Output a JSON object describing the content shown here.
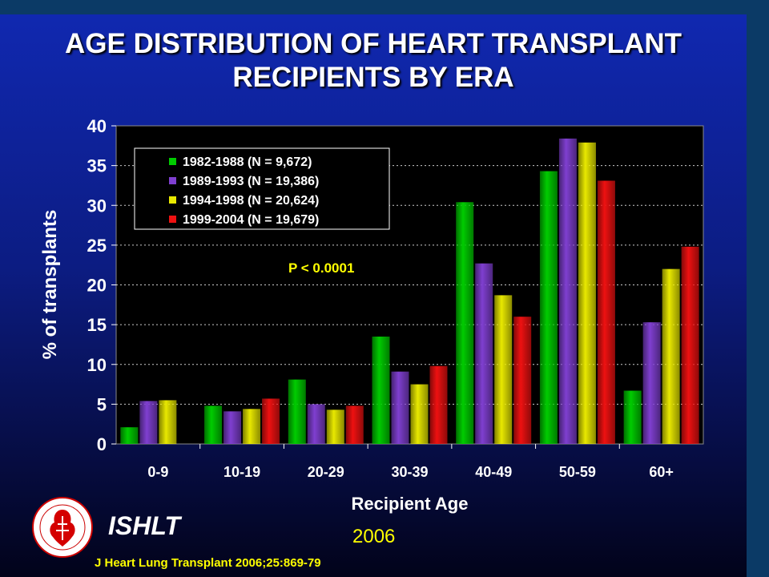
{
  "title_line1": "AGE DISTRIBUTION OF HEART TRANSPLANT",
  "title_line2": "RECIPIENTS BY ERA",
  "org": "ISHLT",
  "year": "2006",
  "citation": "J Heart Lung Transplant 2006;25:869-79",
  "logo_icon": "ishlt-society-seal-icon",
  "chart_data": {
    "type": "bar",
    "title": "",
    "xlabel": "Recipient Age",
    "ylabel": "% of transplants",
    "ylim": [
      0,
      40
    ],
    "yticks": [
      0,
      5,
      10,
      15,
      20,
      25,
      30,
      35,
      40
    ],
    "grid": true,
    "legend_position": "top-left",
    "annotation": "P < 0.0001",
    "categories": [
      "0-9",
      "10-19",
      "20-29",
      "30-39",
      "40-49",
      "50-59",
      "60+"
    ],
    "series": [
      {
        "name": "1982-1988 (N = 9,672)",
        "color": "#00cc00",
        "values": [
          2.1,
          4.8,
          8.1,
          13.5,
          30.4,
          34.3,
          6.7
        ]
      },
      {
        "name": "1989-1993 (N = 19,386)",
        "color": "#7f3fd0",
        "values": [
          5.4,
          4.1,
          5.0,
          9.1,
          22.7,
          38.4,
          15.3
        ]
      },
      {
        "name": "1994-1998 (N = 20,624)",
        "color": "#e8e800",
        "values": [
          5.5,
          4.4,
          4.3,
          7.5,
          18.7,
          37.9,
          22.0
        ]
      },
      {
        "name": "1999-2004 (N = 19,679)",
        "color": "#ee1111",
        "values": [
          0,
          5.7,
          4.8,
          9.8,
          16.0,
          33.1,
          24.8
        ]
      }
    ]
  }
}
